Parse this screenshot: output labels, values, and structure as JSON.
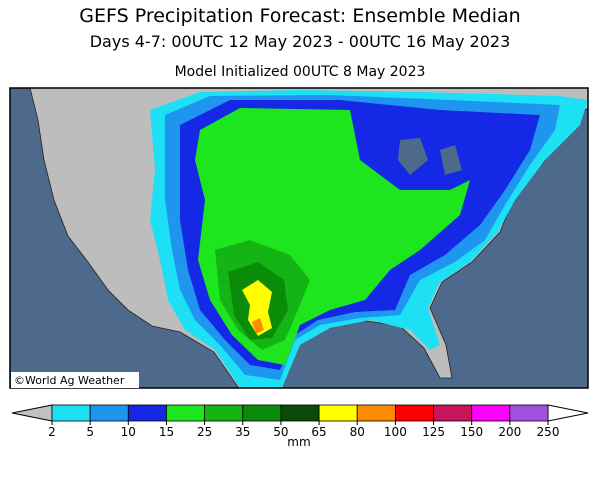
{
  "header": {
    "title": "GEFS Precipitation Forecast: Ensemble Median",
    "subtitle": "Days 4-7: 00UTC 12 May 2023 - 00UTC 16 May 2023",
    "initialized": "Model Initialized 00UTC 8 May 2023"
  },
  "map": {
    "credit": "©World Ag Weather"
  },
  "legend": {
    "ticks": [
      2,
      5,
      10,
      15,
      25,
      35,
      50,
      65,
      80,
      100,
      125,
      150,
      200,
      250
    ],
    "colors": [
      "#1ee0f5",
      "#1e96f0",
      "#1428e6",
      "#1ee61e",
      "#14b414",
      "#0a8c0a",
      "#0a4b0a",
      "#ffff00",
      "#ff8c00",
      "#ff0000",
      "#c8145a",
      "#ff00ff",
      "#a050dc"
    ],
    "under_color": "#c0c0c0",
    "over_color": "#ffffff",
    "unit": "mm"
  }
}
